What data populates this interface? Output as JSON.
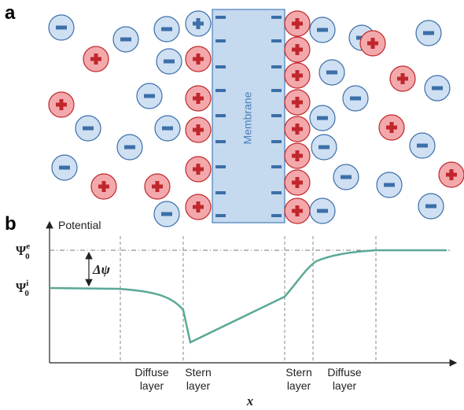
{
  "panel_a": {
    "label": "a",
    "membrane_label": "Membrane"
  },
  "panel_b": {
    "label": "b",
    "y_axis_label": "Potential",
    "x_axis_label": "x",
    "levels": [
      {
        "symbol": "Ψ",
        "subscript": "0",
        "superscript": "e"
      },
      {
        "symbol": "Ψ",
        "subscript": "0",
        "superscript": "i"
      }
    ],
    "delta_label": "Δψ",
    "regions": [
      {
        "line1": "Diffuse",
        "line2": "layer"
      },
      {
        "line1": "Stern",
        "line2": "layer"
      },
      {
        "line1": "Stern",
        "line2": "layer"
      },
      {
        "line1": "Diffuse",
        "line2": "layer"
      }
    ]
  }
}
